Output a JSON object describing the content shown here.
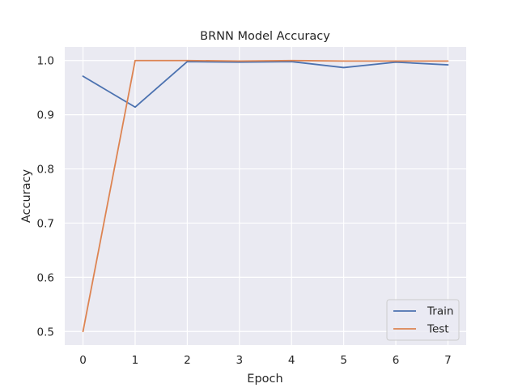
{
  "chart_data": {
    "type": "line",
    "title": "BRNN Model Accuracy",
    "xlabel": "Epoch",
    "ylabel": "Accuracy",
    "x": [
      0,
      1,
      2,
      3,
      4,
      5,
      6,
      7
    ],
    "xlim": [
      -0.35,
      7.35
    ],
    "ylim": [
      0.475,
      1.025
    ],
    "xticks": [
      "0",
      "1",
      "2",
      "3",
      "4",
      "5",
      "6",
      "7"
    ],
    "yticks": [
      "0.5",
      "0.6",
      "0.7",
      "0.8",
      "0.9",
      "1.0"
    ],
    "grid": true,
    "background": "#EAEAF2",
    "legend_position": "lower-right",
    "series": [
      {
        "name": "Train",
        "color": "#4C72B0",
        "values": [
          0.971,
          0.914,
          0.998,
          0.997,
          0.998,
          0.987,
          0.997,
          0.992
        ]
      },
      {
        "name": "Test",
        "color": "#DD8452",
        "values": [
          0.5,
          1.0,
          1.0,
          0.999,
          1.0,
          0.999,
          0.999,
          0.999
        ]
      }
    ]
  }
}
